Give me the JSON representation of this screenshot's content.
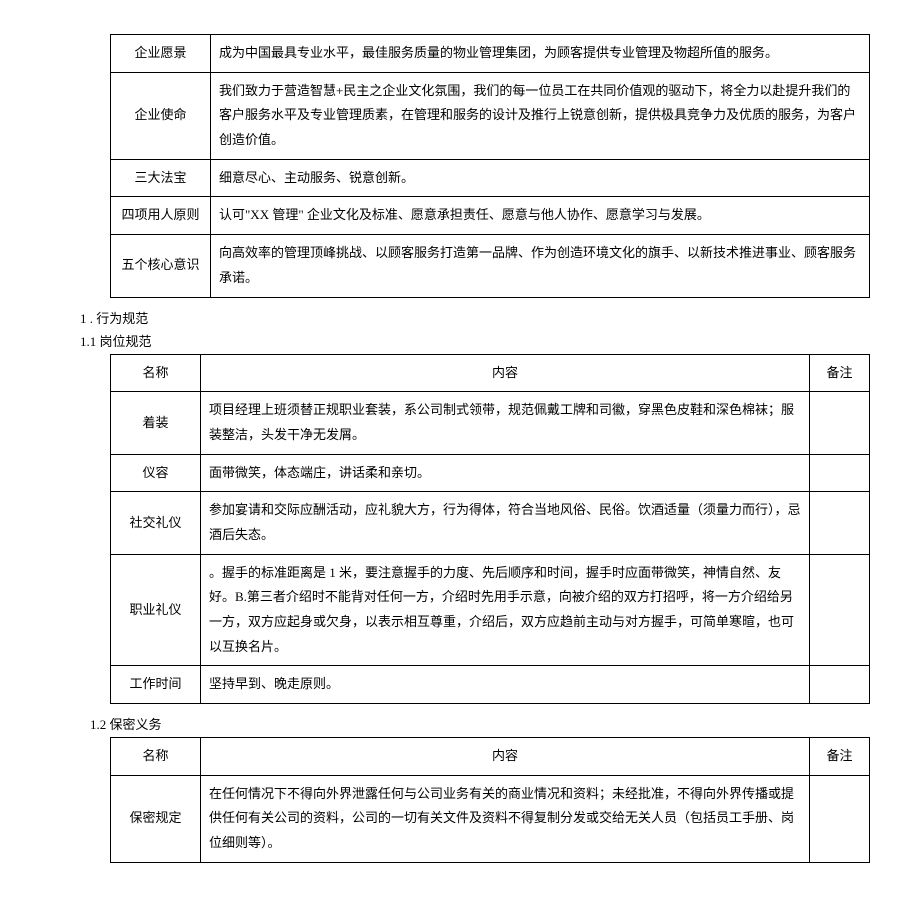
{
  "table1": {
    "rows": [
      {
        "name": "企业愿景",
        "content": "成为中国最具专业水平，最佳服务质量的物业管理集团，为顾客提供专业管理及物超所值的服务。"
      },
      {
        "name": "企业使命",
        "content": "我们致力于营造智慧+民主之企业文化氛围，我们的每一位员工在共同价值观的驱动下，将全力以赴提升我们的客户服务水平及专业管理质素，在管理和服务的设计及推行上锐意创新，提供极具竞争力及优质的服务，为客户创造价值。"
      },
      {
        "name": "三大法宝",
        "content": "细意尽心、主动服务、锐意创新。"
      },
      {
        "name": "四项用人原则",
        "content": "认可\"XX 管理\" 企业文化及标准、愿意承担责任、愿意与他人协作、愿意学习与发展。"
      },
      {
        "name": "五个核心意识",
        "content": "向高效率的管理顶峰挑战、以顾客服务打造第一品牌、作为创造环境文化的旗手、以新技术推进事业、顾客服务承诺。"
      }
    ]
  },
  "section1": "1 . 行为规范",
  "section1_1": "1.1 岗位规范",
  "table2": {
    "header": {
      "name": "名称",
      "content": "内容",
      "note": "备注"
    },
    "rows": [
      {
        "name": "着装",
        "content": "项目经理上班须替正规职业套装，系公司制式领带，规范佩戴工牌和司徽，穿黑色皮鞋和深色棉袜；服装整洁，头发干净无发屑。",
        "note": ""
      },
      {
        "name": "仪容",
        "content": "面带微笑，体态端庄，讲话柔和亲切。",
        "note": ""
      },
      {
        "name": "社交礼仪",
        "content": "参加宴请和交际应酬活动，应礼貌大方，行为得体，符合当地风俗、民俗。饮酒适量（须量力而行），忌酒后失态。",
        "note": ""
      },
      {
        "name": "职业礼仪",
        "content": "。握手的标准距离是 1 米，要注意握手的力度、先后顺序和时间，握手时应面带微笑，神情自然、友好。B.第三者介绍时不能背对任何一方，介绍时先用手示意，向被介绍的双方打招呼，将一方介绍给另一方，双方应起身或欠身，以表示相互尊重，介绍后，双方应趋前主动与对方握手，可简单寒暄，也可以互换名片。",
        "note": ""
      },
      {
        "name": "工作时间",
        "content": "坚持早到、晚走原则。",
        "note": ""
      }
    ]
  },
  "section1_2": "1.2 保密义务",
  "table3": {
    "header": {
      "name": "名称",
      "content": "内容",
      "note": "备注"
    },
    "rows": [
      {
        "name": "保密规定",
        "content": "在任何情况下不得向外界泄露任何与公司业务有关的商业情况和资料；未经批准，不得向外界传播或提供任何有关公司的资料，公司的一切有关文件及资料不得复制分发或交给无关人员（包括员工手册、岗位细则等）。",
        "note": ""
      }
    ]
  }
}
